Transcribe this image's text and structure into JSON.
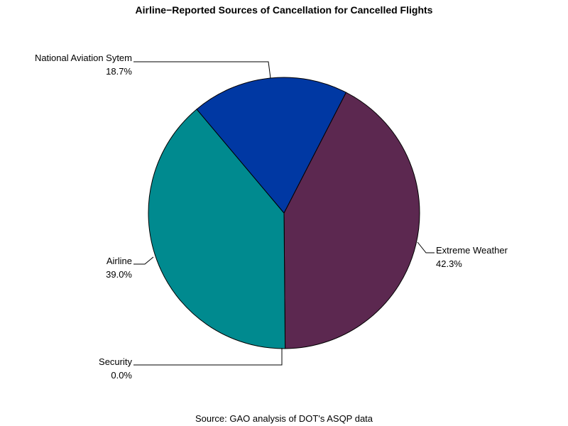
{
  "chart_data": {
    "type": "pie",
    "title": "Airline−Reported Sources of Cancellation for Cancelled Flights",
    "source": "Source: GAO analysis of DOT's ASQP data",
    "slices": [
      {
        "name": "Extreme Weather",
        "value": 42.3,
        "label": "42.3%",
        "color": "#5c2850"
      },
      {
        "name": "Security",
        "value": 0.0,
        "label": "0.0%",
        "color": "#000000"
      },
      {
        "name": "Airline",
        "value": 39.0,
        "label": "39.0%",
        "color": "#008a8f"
      },
      {
        "name": "National Aviation Sytem",
        "value": 18.7,
        "label": "18.7%",
        "color": "#0038a3"
      }
    ]
  }
}
